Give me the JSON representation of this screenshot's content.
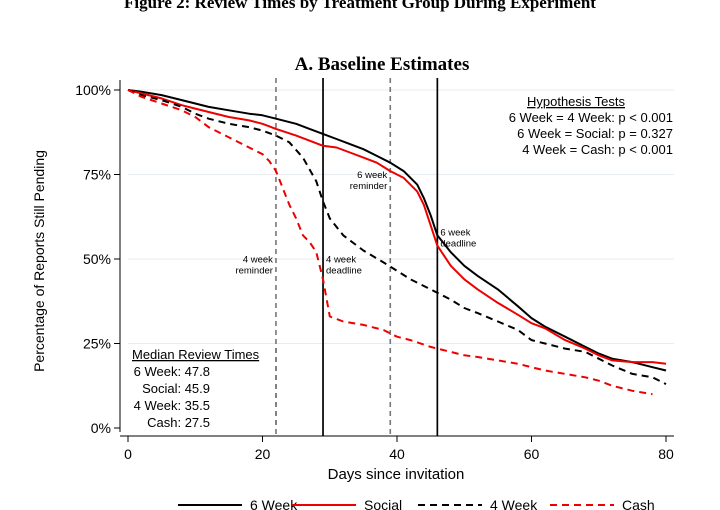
{
  "figure_title": "Figure 2: Review Times by Treatment Group During Experiment",
  "panel_title": "A.  Baseline Estimates",
  "colors": {
    "black": "#000000",
    "red": "#ee0000",
    "marker": "#777777",
    "grid": "#e6ecef"
  },
  "chart_data": {
    "type": "line",
    "xlabel": "Days since invitation",
    "ylabel": "Percentage of Reports Still Pending",
    "xlim": [
      0,
      80
    ],
    "ylim": [
      0,
      100
    ],
    "x_ticks": [
      0,
      20,
      40,
      60,
      80
    ],
    "x_tick_labels": [
      "0",
      "20",
      "40",
      "60",
      "80"
    ],
    "y_ticks": [
      0,
      25,
      50,
      75,
      100
    ],
    "y_tick_labels": [
      "0%",
      "25%",
      "50%",
      "75%",
      "100%"
    ],
    "grid": true,
    "legend_position": "bottom",
    "series": [
      {
        "name": "6 Week",
        "color": "#000000",
        "dash": "solid",
        "x": [
          0,
          2,
          5,
          8,
          10,
          12,
          15,
          18,
          20,
          22,
          25,
          27,
          29,
          31,
          33,
          35,
          37,
          39,
          41,
          43,
          44,
          45,
          46,
          48,
          50,
          52,
          55,
          58,
          60,
          62,
          65,
          68,
          70,
          72,
          75,
          78,
          80
        ],
        "y": [
          100,
          99.5,
          98.5,
          97,
          96,
          95,
          94,
          93,
          92.5,
          91.5,
          90,
          88.5,
          87,
          85.5,
          84,
          82.5,
          80.5,
          78.5,
          76,
          72,
          68,
          63,
          57,
          52,
          48,
          45,
          41,
          36,
          32.5,
          30,
          27,
          24,
          22,
          20.5,
          19.5,
          18,
          17
        ]
      },
      {
        "name": "Social",
        "color": "#ee0000",
        "dash": "solid",
        "x": [
          0,
          2,
          5,
          8,
          10,
          12,
          15,
          18,
          20,
          22,
          25,
          27,
          29,
          31,
          33,
          35,
          37,
          39,
          41,
          43,
          44,
          45,
          46,
          48,
          50,
          52,
          55,
          58,
          60,
          62,
          65,
          68,
          70,
          72,
          75,
          78,
          80
        ],
        "y": [
          100,
          99,
          97.5,
          95.5,
          94.5,
          93.5,
          92,
          91,
          90,
          88.5,
          86.5,
          85,
          83.5,
          83,
          81.5,
          80,
          78.5,
          76,
          74,
          70,
          66,
          60,
          54,
          48,
          44,
          41,
          37,
          33.5,
          31,
          29.5,
          26,
          23.5,
          21.5,
          20,
          19.5,
          19.5,
          19
        ]
      },
      {
        "name": "4 Week",
        "color": "#000000",
        "dash": "dashed",
        "x": [
          0,
          2,
          5,
          8,
          10,
          12,
          15,
          18,
          20,
          22,
          24,
          26,
          28,
          29,
          30,
          32,
          35,
          38,
          40,
          42,
          45,
          48,
          50,
          52,
          55,
          58,
          60,
          62,
          65,
          68,
          70,
          72,
          75,
          78,
          80
        ],
        "y": [
          100,
          98.5,
          97,
          95,
          93,
          91.5,
          90,
          89,
          88,
          86.5,
          84.5,
          80,
          73,
          67,
          62,
          57,
          52.5,
          49,
          46.5,
          44,
          41,
          38,
          35.5,
          34,
          31.5,
          29,
          26,
          25,
          23.5,
          22.5,
          20.5,
          18.5,
          16,
          15,
          13
        ]
      },
      {
        "name": "Cash",
        "color": "#ee0000",
        "dash": "dashed",
        "x": [
          0,
          2,
          5,
          8,
          10,
          12,
          14,
          16,
          18,
          20,
          21,
          22,
          23,
          24,
          25,
          26,
          27,
          28,
          29,
          30,
          32,
          35,
          38,
          40,
          42,
          45,
          48,
          50,
          52,
          55,
          58,
          60,
          62,
          65,
          68,
          70,
          72,
          75,
          78
        ],
        "y": [
          100,
          98,
          96,
          94,
          92,
          89,
          87,
          85,
          83,
          81,
          79,
          76,
          71,
          66,
          62,
          57,
          55,
          52,
          44,
          33,
          31.5,
          30.5,
          29,
          27,
          26,
          24,
          22.5,
          21.5,
          21,
          20,
          19,
          18,
          17,
          16,
          15,
          14,
          12.5,
          11,
          10
        ]
      }
    ],
    "event_lines": [
      {
        "x": 22,
        "style": "dashed",
        "label_lines": [
          "4 week",
          "reminder"
        ],
        "label_y": 49,
        "side": "left"
      },
      {
        "x": 29,
        "style": "solid",
        "label_lines": [
          "4 week",
          "deadline"
        ],
        "label_y": 49,
        "side": "right"
      },
      {
        "x": 39,
        "style": "dashed",
        "label_lines": [
          "6 week",
          "reminder"
        ],
        "label_y": 74,
        "side": "left"
      },
      {
        "x": 46,
        "style": "solid",
        "label_lines": [
          "6 week",
          "deadline"
        ],
        "label_y": 57,
        "side": "right"
      }
    ],
    "hypothesis_tests": {
      "title": "Hypothesis Tests",
      "rows": [
        "6 Week = 4 Week:  p < 0.001",
        "6 Week = Social:  p = 0.327",
        "4 Week = Cash:  p < 0.001"
      ]
    },
    "median_review_times": {
      "title": "Median Review Times",
      "rows": [
        "6 Week: 47.8",
        "Social: 45.9",
        "4 Week: 35.5",
        "Cash: 27.5"
      ]
    },
    "legend": [
      "6 Week",
      "Social",
      "4 Week",
      "Cash"
    ]
  }
}
